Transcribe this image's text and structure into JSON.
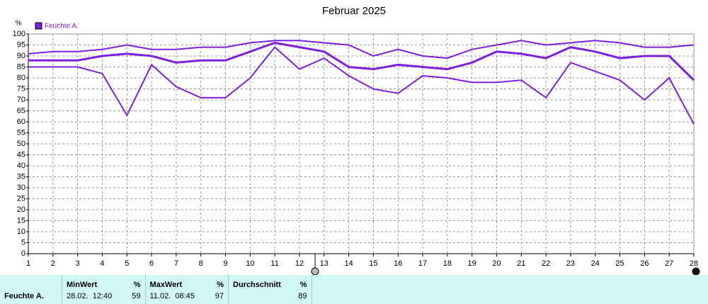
{
  "chart_data": {
    "type": "line",
    "title": "Februar 2025",
    "y_label": "%",
    "x": [
      1,
      2,
      3,
      4,
      5,
      6,
      7,
      8,
      9,
      10,
      11,
      12,
      13,
      14,
      15,
      16,
      17,
      18,
      19,
      20,
      21,
      22,
      23,
      24,
      25,
      26,
      27,
      28
    ],
    "xlim": [
      1,
      28
    ],
    "xticks": [
      1,
      2,
      3,
      4,
      5,
      6,
      7,
      8,
      9,
      10,
      11,
      12,
      13,
      14,
      15,
      16,
      17,
      18,
      19,
      20,
      21,
      22,
      23,
      24,
      25,
      26,
      27,
      28
    ],
    "ylim": [
      0,
      100
    ],
    "yticks": [
      0,
      5,
      10,
      15,
      20,
      25,
      30,
      35,
      40,
      45,
      50,
      55,
      60,
      65,
      70,
      75,
      80,
      85,
      90,
      95,
      100
    ],
    "grid": true,
    "legend": "top-left",
    "series": [
      {
        "name": "Feuchte A.",
        "color": "#7f1fe0",
        "values": [
          88,
          88,
          88,
          90,
          91,
          90,
          87,
          88,
          88,
          92,
          96,
          94,
          92,
          85,
          84,
          86,
          85,
          84,
          87,
          92,
          91,
          89,
          94,
          92,
          89,
          90,
          90,
          79
        ]
      },
      {
        "color": "#7f1fe0",
        "values": [
          91,
          92,
          92,
          93,
          95,
          93,
          93,
          94,
          94,
          96,
          97,
          97,
          96,
          95,
          90,
          93,
          90,
          89,
          93,
          95,
          97,
          95,
          96,
          97,
          96,
          94,
          94,
          95
        ]
      },
      {
        "color": "#7f1fe0",
        "values": [
          85,
          85,
          85,
          82,
          63,
          86,
          76,
          71,
          71,
          80,
          94,
          84,
          89,
          81,
          75,
          73,
          81,
          80,
          78,
          78,
          79,
          71,
          87,
          83,
          79,
          70,
          80,
          59
        ]
      }
    ]
  },
  "table": {
    "row_label": "Feuchte A.",
    "columns": [
      {
        "title": "MinWert",
        "unit": "%",
        "time": "28.02.  12:40",
        "value": 59
      },
      {
        "title": "MaxWert",
        "unit": "%",
        "time": "11.02.  08:45",
        "value": 97
      },
      {
        "title": "Durchschnitt",
        "unit": "%",
        "value": 89
      }
    ]
  }
}
